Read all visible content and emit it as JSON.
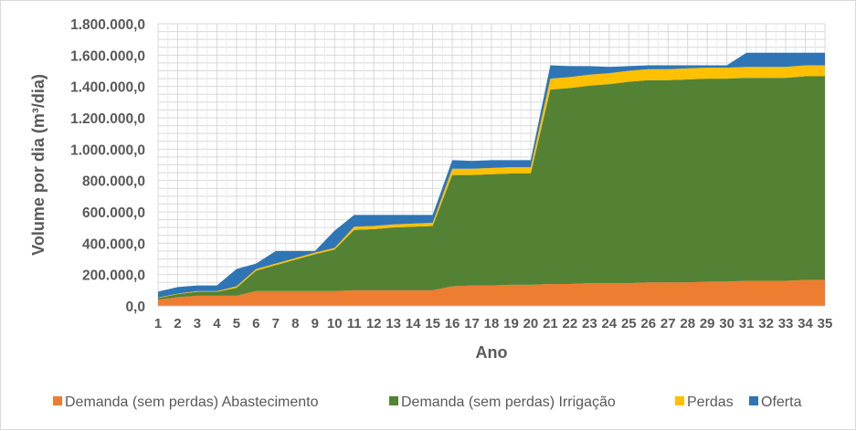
{
  "chart_data": {
    "type": "area",
    "stacked": true,
    "xlabel": "Ano",
    "ylabel": "Volume por dia (m³/dia)",
    "ylim": [
      0,
      1800000
    ],
    "yticks": [
      0,
      200000,
      400000,
      600000,
      800000,
      1000000,
      1200000,
      1400000,
      1600000,
      1800000
    ],
    "ytick_labels": [
      "0,0",
      "200.000,0",
      "400.000,0",
      "600.000,0",
      "800.000,0",
      "1.000.000,0",
      "1.200.000,0",
      "1.400.000,0",
      "1.600.000,0",
      "1.800.000,0"
    ],
    "x": [
      1,
      2,
      3,
      4,
      5,
      6,
      7,
      8,
      9,
      10,
      11,
      12,
      13,
      14,
      15,
      16,
      17,
      18,
      19,
      20,
      21,
      22,
      23,
      24,
      25,
      26,
      27,
      28,
      29,
      30,
      31,
      32,
      33,
      34,
      35
    ],
    "grid": true,
    "legend_position": "bottom",
    "series": [
      {
        "name": "Demanda (sem perdas) Abastecimento",
        "color": "#ed7d31",
        "values": [
          40000,
          55000,
          65000,
          65000,
          65000,
          95000,
          95000,
          95000,
          95000,
          95000,
          100000,
          100000,
          100000,
          100000,
          100000,
          125000,
          130000,
          130000,
          135000,
          135000,
          140000,
          140000,
          145000,
          145000,
          145000,
          150000,
          150000,
          150000,
          155000,
          155000,
          160000,
          160000,
          160000,
          165000,
          165000
        ]
      },
      {
        "name": "Demanda (sem perdas) Irrigação",
        "color": "#548235",
        "values": [
          10000,
          20000,
          25000,
          25000,
          50000,
          130000,
          165000,
          200000,
          235000,
          265000,
          385000,
          390000,
          400000,
          405000,
          410000,
          710000,
          705000,
          710000,
          710000,
          710000,
          1240000,
          1250000,
          1260000,
          1270000,
          1285000,
          1290000,
          1290000,
          1295000,
          1295000,
          1295000,
          1295000,
          1295000,
          1295000,
          1300000,
          1300000
        ]
      },
      {
        "name": "Perdas",
        "color": "#ffc000",
        "values": [
          3000,
          3000,
          5000,
          5000,
          10000,
          10000,
          10000,
          10000,
          10000,
          10000,
          20000,
          20000,
          20000,
          20000,
          20000,
          40000,
          40000,
          40000,
          40000,
          40000,
          70000,
          70000,
          70000,
          70000,
          70000,
          70000,
          70000,
          70000,
          70000,
          70000,
          70000,
          70000,
          70000,
          70000,
          70000
        ]
      },
      {
        "name": "Oferta",
        "color": "#2e75b6",
        "values": [
          37000,
          42000,
          35000,
          35000,
          110000,
          35000,
          80000,
          45000,
          10000,
          110000,
          75000,
          70000,
          60000,
          55000,
          50000,
          55000,
          50000,
          50000,
          45000,
          45000,
          85000,
          70000,
          55000,
          40000,
          30000,
          25000,
          25000,
          20000,
          15000,
          15000,
          90000,
          90000,
          90000,
          80000,
          80000
        ]
      }
    ]
  }
}
